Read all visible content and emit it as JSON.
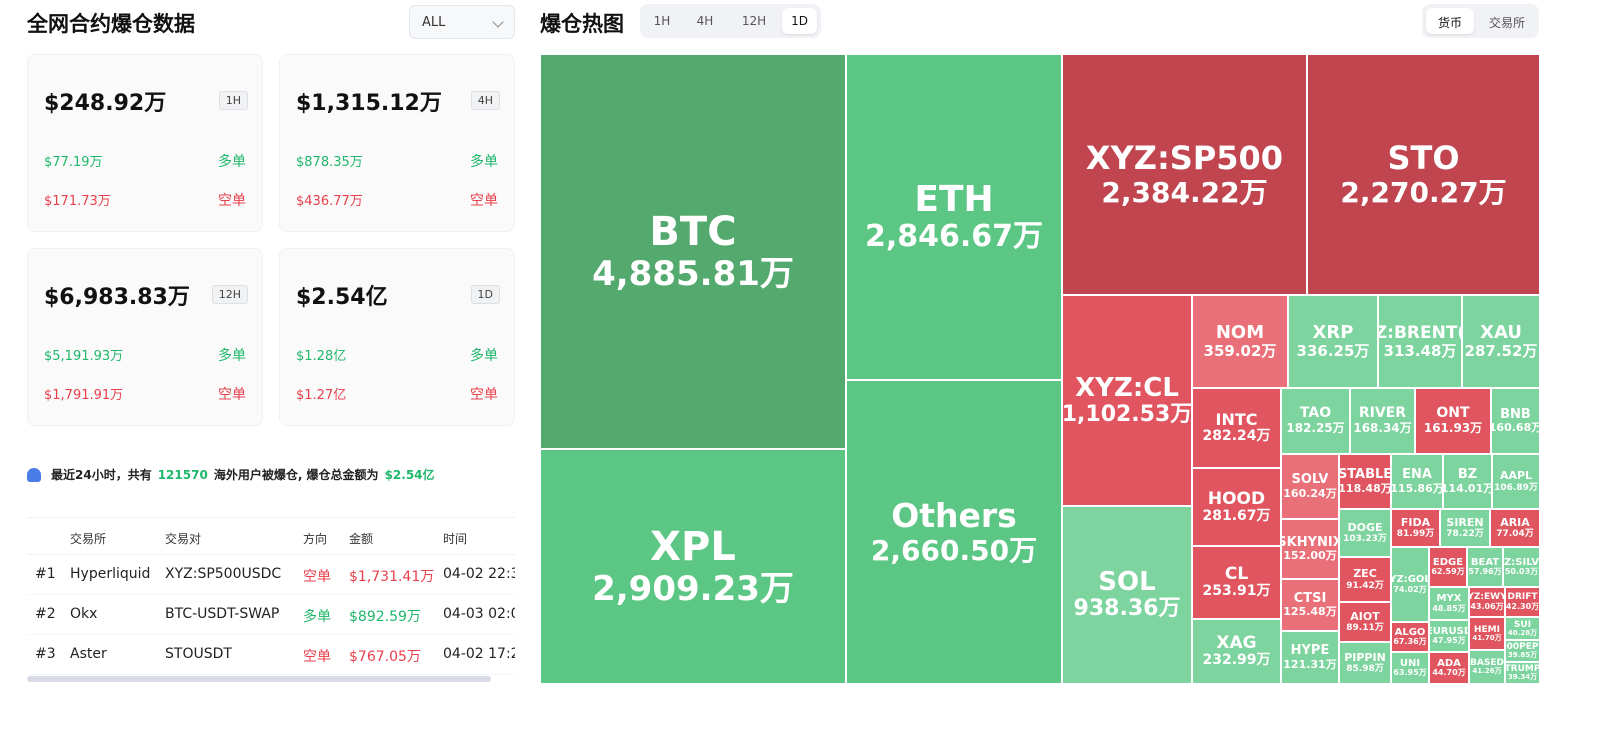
{
  "left": {
    "title": "全网合约爆仓数据",
    "filter_value": "ALL",
    "cards": [
      {
        "total": "$248.92万",
        "period": "1H",
        "long_value": "$77.19万",
        "long_label": "多单",
        "short_value": "$171.73万",
        "short_label": "空单"
      },
      {
        "total": "$1,315.12万",
        "period": "4H",
        "long_value": "$878.35万",
        "long_label": "多单",
        "short_value": "$436.77万",
        "short_label": "空单"
      },
      {
        "total": "$6,983.83万",
        "period": "12H",
        "long_value": "$5,191.93万",
        "long_label": "多单",
        "short_value": "$1,791.91万",
        "short_label": "空单"
      },
      {
        "total": "$2.54亿",
        "period": "1D",
        "long_value": "$1.28亿",
        "long_label": "多单",
        "short_value": "$1.27亿",
        "short_label": "空单"
      }
    ],
    "notice": {
      "prefix": "最近24小时，共有",
      "count": "121570",
      "middle": "海外用户被爆仓, 爆仓总金额为",
      "amount": "$2.54亿"
    },
    "table": {
      "headers": [
        "",
        "交易所",
        "交易对",
        "方向",
        "金额",
        "时间"
      ],
      "rows": [
        {
          "rank": "#1",
          "exchange": "Hyperliquid",
          "pair": "XYZ:SP500USDC",
          "side": "空单",
          "amount": "$1,731.41万",
          "time": "04-02 22:3"
        },
        {
          "rank": "#2",
          "exchange": "Okx",
          "pair": "BTC-USDT-SWAP",
          "side": "多单",
          "amount": "$892.59万",
          "time": "04-03 02:0"
        },
        {
          "rank": "#3",
          "exchange": "Aster",
          "pair": "STOUSDT",
          "side": "空单",
          "amount": "$767.05万",
          "time": "04-02 17:2"
        }
      ]
    }
  },
  "heatmap": {
    "title": "爆仓热图",
    "periods": [
      "1H",
      "4H",
      "12H",
      "1D"
    ],
    "active_period": "1D",
    "toggle": [
      "货币",
      "交易所"
    ],
    "active_toggle": "货币",
    "colors": {
      "dark_green": "#54a96f",
      "green": "#5cc785",
      "light_green": "#7dd49e",
      "dark_red": "#c0454f",
      "red": "#e0555f",
      "light_red": "#e97078"
    },
    "tiles": [
      {
        "name": "BTC",
        "value": "4,885.81万"
      },
      {
        "name": "XPL",
        "value": "2,909.23万"
      },
      {
        "name": "ETH",
        "value": "2,846.67万"
      },
      {
        "name": "Others",
        "value": "2,660.50万"
      },
      {
        "name": "XYZ:SP500",
        "value": "2,384.22万"
      },
      {
        "name": "STO",
        "value": "2,270.27万"
      },
      {
        "name": "XYZ:CL",
        "value": "1,102.53万"
      },
      {
        "name": "SOL",
        "value": "938.36万"
      },
      {
        "name": "NOM",
        "value": "359.02万"
      },
      {
        "name": "XRP",
        "value": "336.25万"
      },
      {
        "name": "Z:BRENT(",
        "value": "313.48万"
      },
      {
        "name": "XAU",
        "value": "287.52万"
      },
      {
        "name": "INTC",
        "value": "282.24万"
      },
      {
        "name": "TAO",
        "value": "182.25万"
      },
      {
        "name": "RIVER",
        "value": "168.34万"
      },
      {
        "name": "ONT",
        "value": "161.93万"
      },
      {
        "name": "BNB",
        "value": "160.68万"
      },
      {
        "name": "HOOD",
        "value": "281.67万"
      },
      {
        "name": "CL",
        "value": "253.91万"
      },
      {
        "name": "XAG",
        "value": "232.99万"
      },
      {
        "name": "SOLV",
        "value": "160.24万"
      },
      {
        "name": "STABLE",
        "value": "118.48万"
      },
      {
        "name": "ENA",
        "value": "115.86万"
      },
      {
        "name": "BZ",
        "value": "114.01万"
      },
      {
        "name": "AAPL",
        "value": "106.89万"
      },
      {
        "name": "SKHYNIX",
        "value": "152.00万"
      },
      {
        "name": "DOGE",
        "value": "103.23万"
      },
      {
        "name": "FIDA",
        "value": "81.99万"
      },
      {
        "name": "SIREN",
        "value": "78.22万"
      },
      {
        "name": "ARIA",
        "value": "77.04万"
      },
      {
        "name": "CTSI",
        "value": "125.48万"
      },
      {
        "name": "HYPE",
        "value": "121.31万"
      },
      {
        "name": "ZEC",
        "value": "91.42万"
      },
      {
        "name": "AIOT",
        "value": "89.11万"
      },
      {
        "name": "PIPPIN",
        "value": "85.98万"
      },
      {
        "name": "YZ:GOL",
        "value": "74.02万"
      },
      {
        "name": "MYX",
        "value": "48.85万"
      },
      {
        "name": "EURUSD",
        "value": "47.95万"
      },
      {
        "name": "UNI",
        "value": "63.95万"
      },
      {
        "name": "ALGO",
        "value": "67.36万"
      },
      {
        "name": "EDGE",
        "value": "62.59万"
      },
      {
        "name": "BEAT",
        "value": "57.96万"
      },
      {
        "name": "Z:SILV",
        "value": "50.03万"
      },
      {
        "name": "YZ:EWY",
        "value": "43.06万"
      },
      {
        "name": "DRIFT",
        "value": "42.30万"
      },
      {
        "name": "HEMI",
        "value": "41.70万"
      },
      {
        "name": "SUI",
        "value": "40.28万"
      },
      {
        "name": "ADA",
        "value": "44.70万"
      },
      {
        "name": "BASED",
        "value": "41.26万"
      },
      {
        "name": "000PEPE",
        "value": "39.85万"
      },
      {
        "name": "TRUMP",
        "value": "39.34万"
      }
    ]
  }
}
